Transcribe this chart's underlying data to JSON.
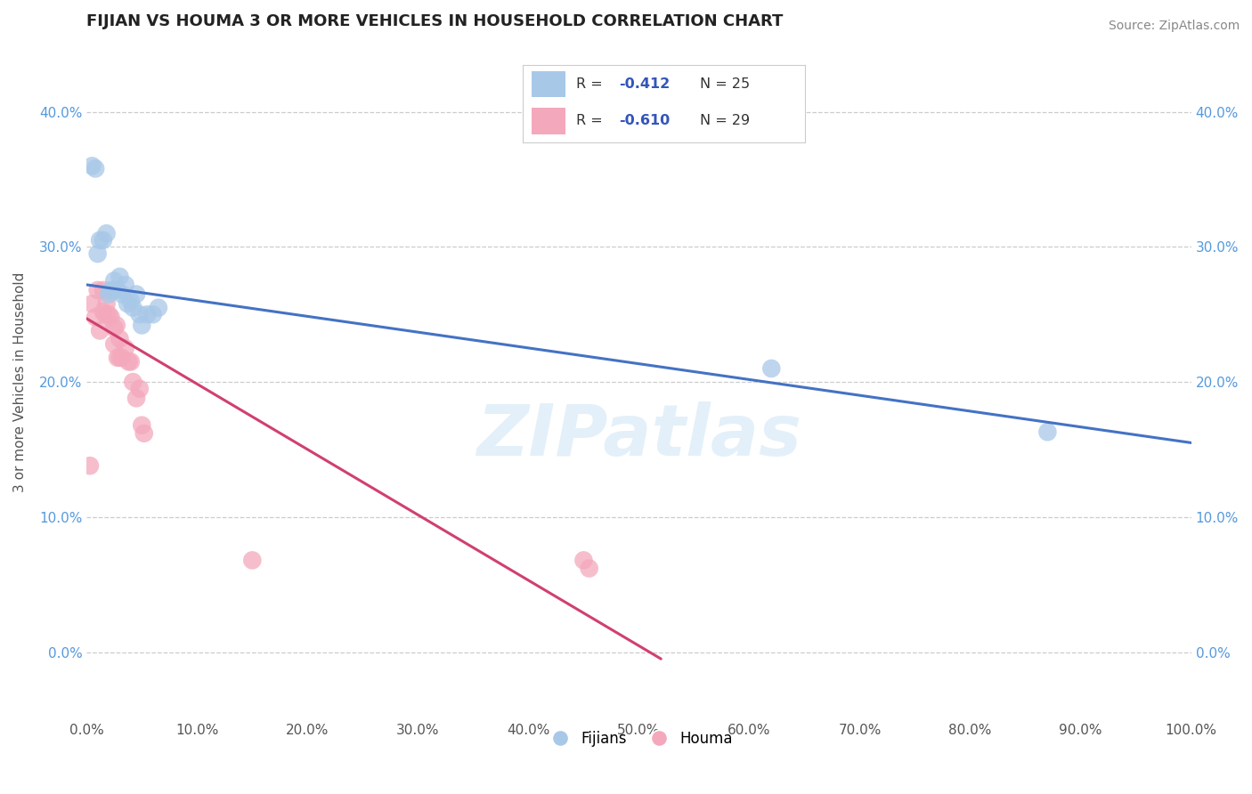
{
  "title": "FIJIAN VS HOUMA 3 OR MORE VEHICLES IN HOUSEHOLD CORRELATION CHART",
  "source": "Source: ZipAtlas.com",
  "ylabel": "3 or more Vehicles in Household",
  "xlim": [
    0.0,
    1.0
  ],
  "ylim": [
    -0.05,
    0.45
  ],
  "xticks": [
    0.0,
    0.1,
    0.2,
    0.3,
    0.4,
    0.5,
    0.6,
    0.7,
    0.8,
    0.9,
    1.0
  ],
  "yticks": [
    0.0,
    0.1,
    0.2,
    0.3,
    0.4
  ],
  "ytick_labels": [
    "0.0%",
    "10.0%",
    "20.0%",
    "30.0%",
    "40.0%"
  ],
  "xtick_labels": [
    "0.0%",
    "10.0%",
    "20.0%",
    "30.0%",
    "40.0%",
    "50.0%",
    "60.0%",
    "70.0%",
    "80.0%",
    "90.0%",
    "100.0%"
  ],
  "fijian_R": -0.412,
  "fijian_N": 25,
  "houma_R": -0.61,
  "houma_N": 29,
  "fijian_color": "#a8c8e8",
  "houma_color": "#f4a8bc",
  "fijian_line_color": "#4472c4",
  "houma_line_color": "#d04070",
  "background_color": "#ffffff",
  "watermark": "ZIPatlas",
  "fijian_x": [
    0.005,
    0.008,
    0.01,
    0.012,
    0.015,
    0.018,
    0.02,
    0.022,
    0.025,
    0.025,
    0.028,
    0.03,
    0.032,
    0.035,
    0.037,
    0.04,
    0.042,
    0.045,
    0.048,
    0.05,
    0.055,
    0.06,
    0.065,
    0.62,
    0.87
  ],
  "fijian_y": [
    0.36,
    0.358,
    0.295,
    0.305,
    0.305,
    0.31,
    0.265,
    0.268,
    0.275,
    0.268,
    0.268,
    0.278,
    0.265,
    0.272,
    0.258,
    0.26,
    0.255,
    0.265,
    0.25,
    0.242,
    0.25,
    0.25,
    0.255,
    0.21,
    0.163
  ],
  "houma_x": [
    0.003,
    0.005,
    0.008,
    0.01,
    0.012,
    0.015,
    0.015,
    0.017,
    0.018,
    0.02,
    0.022,
    0.025,
    0.025,
    0.027,
    0.028,
    0.03,
    0.03,
    0.032,
    0.035,
    0.038,
    0.04,
    0.042,
    0.045,
    0.048,
    0.05,
    0.052,
    0.15,
    0.45,
    0.455
  ],
  "houma_y": [
    0.138,
    0.258,
    0.248,
    0.268,
    0.238,
    0.252,
    0.268,
    0.25,
    0.258,
    0.25,
    0.248,
    0.24,
    0.228,
    0.242,
    0.218,
    0.232,
    0.218,
    0.218,
    0.225,
    0.215,
    0.215,
    0.2,
    0.188,
    0.195,
    0.168,
    0.162,
    0.068,
    0.068,
    0.062
  ],
  "fijian_line_x0": 0.0,
  "fijian_line_x1": 1.0,
  "fijian_line_y0": 0.272,
  "fijian_line_y1": 0.155,
  "houma_line_x0": 0.0,
  "houma_line_x1": 0.52,
  "houma_line_y0": 0.247,
  "houma_line_y1": -0.005
}
